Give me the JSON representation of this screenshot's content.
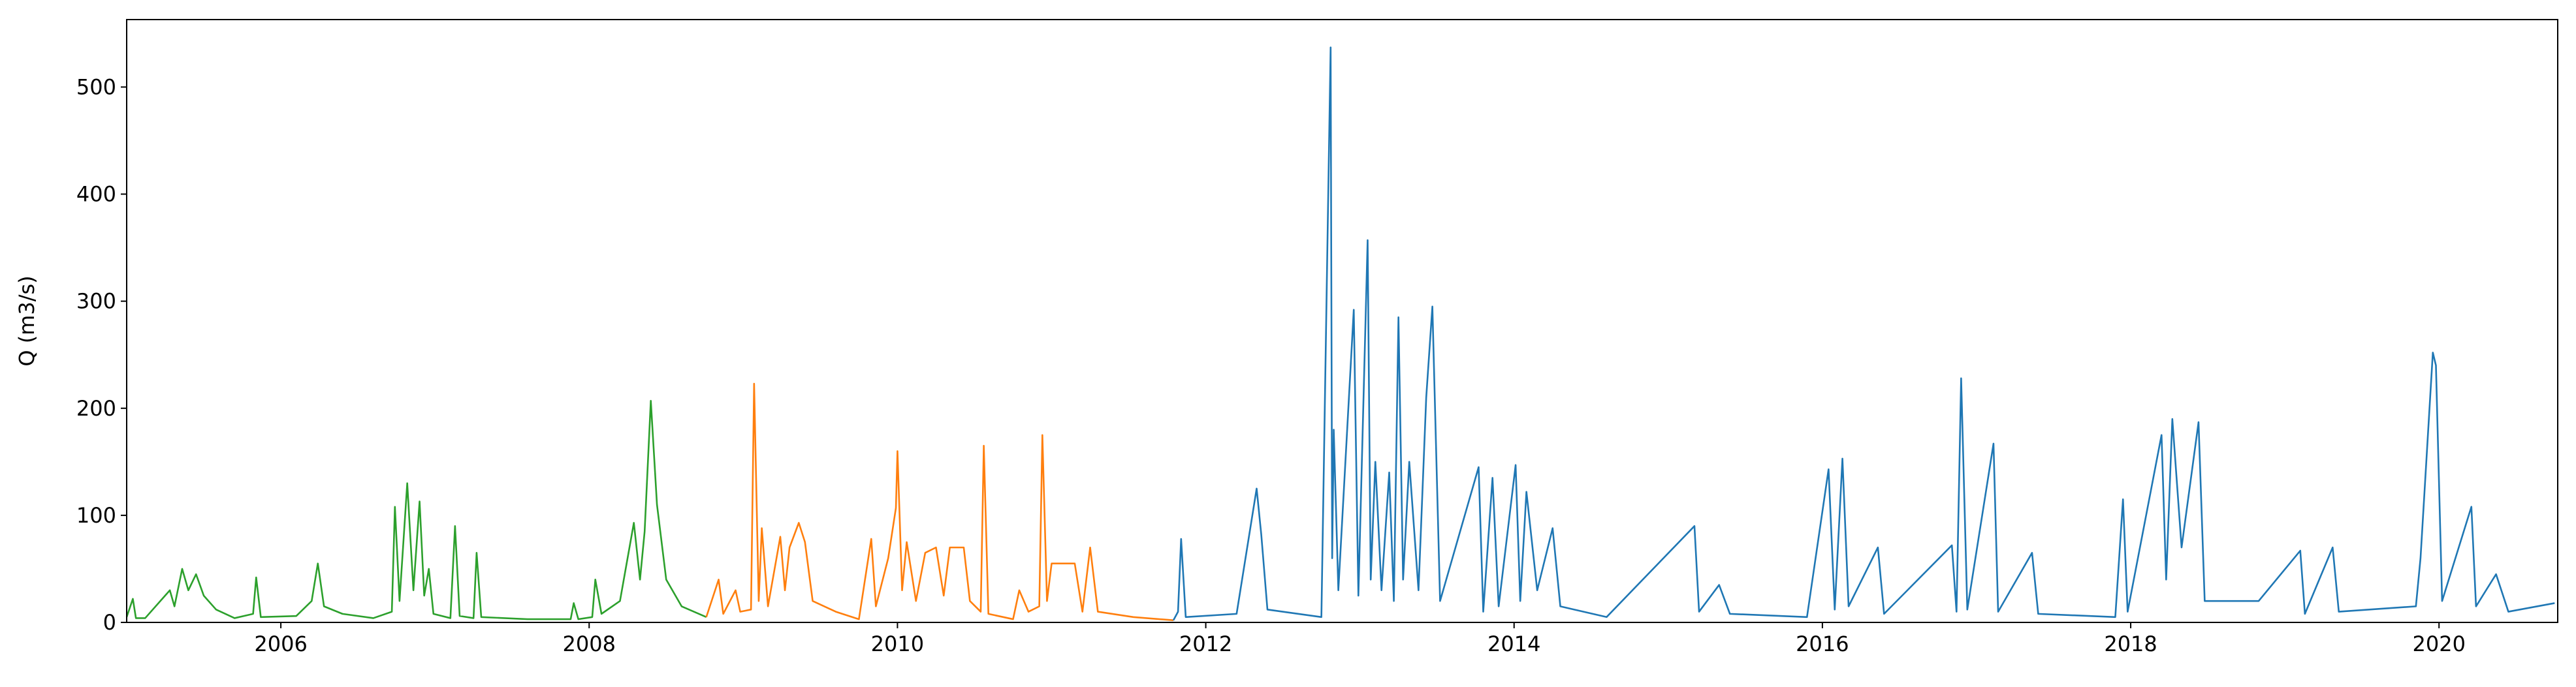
{
  "chart_data": {
    "type": "line",
    "ylabel": "Q (m3/s)",
    "xlim": [
      2005.0,
      2020.77
    ],
    "xticks": [
      2006,
      2008,
      2010,
      2012,
      2014,
      2016,
      2018,
      2020
    ],
    "ylim": [
      0,
      563
    ],
    "yticks": [
      0,
      100,
      200,
      300,
      400,
      500
    ],
    "grid": false,
    "series": [
      {
        "color": "#2ca02c",
        "x": [
          2005.0,
          2005.04,
          2005.06,
          2005.12,
          2005.28,
          2005.31,
          2005.36,
          2005.4,
          2005.45,
          2005.5,
          2005.58,
          2005.7,
          2005.82,
          2005.84,
          2005.87,
          2006.1,
          2006.2,
          2006.24,
          2006.28,
          2006.4,
          2006.6,
          2006.72,
          2006.74,
          2006.77,
          2006.82,
          2006.86,
          2006.9,
          2006.93,
          2006.96,
          2006.99,
          2007.1,
          2007.13,
          2007.16,
          2007.25,
          2007.27,
          2007.3,
          2007.6,
          2007.88,
          2007.9,
          2007.93,
          2008.02,
          2008.04,
          2008.08,
          2008.2,
          2008.29,
          2008.33,
          2008.36,
          2008.4,
          2008.44,
          2008.5,
          2008.6,
          2008.76
        ],
        "values": [
          5,
          22,
          4,
          4,
          30,
          15,
          50,
          30,
          45,
          25,
          12,
          4,
          8,
          42,
          5,
          6,
          20,
          55,
          15,
          8,
          4,
          10,
          108,
          20,
          130,
          30,
          113,
          25,
          50,
          8,
          4,
          90,
          6,
          4,
          65,
          5,
          3,
          3,
          18,
          3,
          5,
          40,
          8,
          20,
          93,
          40,
          85,
          207,
          110,
          40,
          15,
          5
        ]
      },
      {
        "color": "#ff7f0e",
        "x": [
          2008.76,
          2008.84,
          2008.87,
          2008.95,
          2008.98,
          2009.05,
          2009.07,
          2009.1,
          2009.12,
          2009.16,
          2009.24,
          2009.27,
          2009.3,
          2009.36,
          2009.4,
          2009.45,
          2009.6,
          2009.75,
          2009.83,
          2009.86,
          2009.94,
          2009.99,
          2010.0,
          2010.03,
          2010.06,
          2010.12,
          2010.18,
          2010.25,
          2010.3,
          2010.34,
          2010.43,
          2010.47,
          2010.54,
          2010.56,
          2010.59,
          2010.75,
          2010.79,
          2010.85,
          2010.92,
          2010.94,
          2010.97,
          2011.0,
          2011.15,
          2011.2,
          2011.25,
          2011.3,
          2011.53,
          2011.79
        ],
        "values": [
          5,
          40,
          8,
          30,
          10,
          12,
          223,
          20,
          88,
          15,
          80,
          30,
          70,
          93,
          75,
          20,
          10,
          3,
          78,
          15,
          60,
          107,
          160,
          30,
          75,
          20,
          65,
          70,
          25,
          70,
          70,
          20,
          10,
          165,
          8,
          3,
          30,
          10,
          15,
          175,
          20,
          55,
          55,
          10,
          70,
          10,
          5,
          2
        ]
      },
      {
        "color": "#1f77b4",
        "x": [
          2011.79,
          2011.82,
          2011.84,
          2011.87,
          2012.2,
          2012.33,
          2012.36,
          2012.4,
          2012.75,
          2012.81,
          2012.82,
          2012.83,
          2012.86,
          2012.96,
          2012.99,
          2013.05,
          2013.07,
          2013.1,
          2013.14,
          2013.19,
          2013.22,
          2013.25,
          2013.28,
          2013.32,
          2013.38,
          2013.43,
          2013.47,
          2013.52,
          2013.77,
          2013.8,
          2013.86,
          2013.9,
          2014.01,
          2014.04,
          2014.08,
          2014.15,
          2014.25,
          2014.3,
          2014.6,
          2015.17,
          2015.2,
          2015.33,
          2015.4,
          2015.9,
          2016.04,
          2016.08,
          2016.13,
          2016.17,
          2016.36,
          2016.4,
          2016.84,
          2016.87,
          2016.9,
          2016.94,
          2017.11,
          2017.14,
          2017.36,
          2017.4,
          2017.9,
          2017.95,
          2017.98,
          2018.2,
          2018.23,
          2018.27,
          2018.33,
          2018.44,
          2018.48,
          2018.83,
          2019.1,
          2019.13,
          2019.31,
          2019.35,
          2019.85,
          2019.88,
          2019.96,
          2019.98,
          2020.02,
          2020.21,
          2020.24,
          2020.37,
          2020.45,
          2020.75
        ],
        "values": [
          2,
          10,
          78,
          5,
          8,
          125,
          82,
          12,
          5,
          537,
          60,
          180,
          30,
          292,
          25,
          357,
          40,
          150,
          30,
          140,
          20,
          285,
          40,
          150,
          30,
          210,
          295,
          20,
          145,
          10,
          135,
          15,
          147,
          20,
          122,
          30,
          88,
          15,
          5,
          90,
          10,
          35,
          8,
          5,
          143,
          12,
          153,
          15,
          70,
          8,
          72,
          10,
          228,
          12,
          167,
          10,
          65,
          8,
          5,
          115,
          10,
          175,
          40,
          190,
          70,
          187,
          20,
          20,
          67,
          8,
          70,
          10,
          15,
          60,
          252,
          240,
          20,
          108,
          15,
          45,
          10,
          18
        ]
      }
    ]
  }
}
